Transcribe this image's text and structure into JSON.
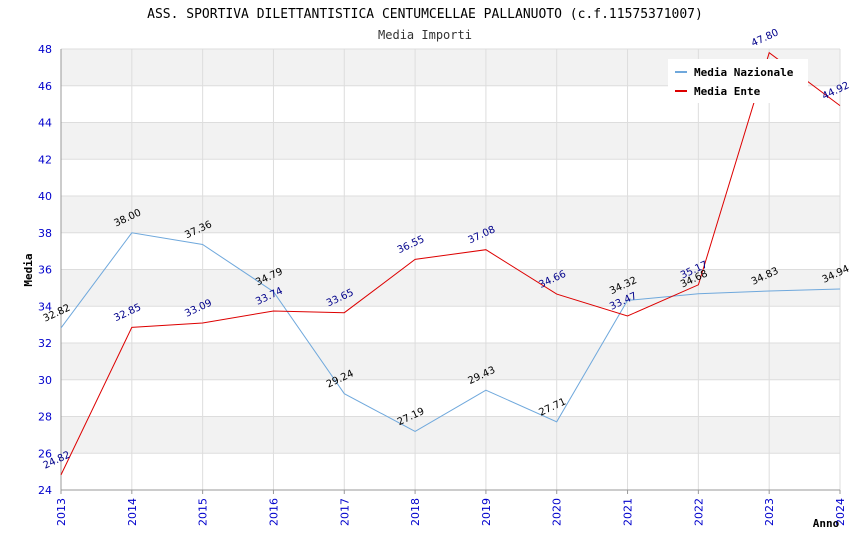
{
  "chart_data": {
    "type": "line",
    "title": "ASS. SPORTIVA DILETTANTISTICA CENTUMCELLAE PALLANUOTO (c.f.11575371007)",
    "subtitle": "Media Importi",
    "xlabel": "Anno",
    "ylabel": "Media",
    "ylim": [
      24,
      48
    ],
    "yticks": [
      "24",
      "26",
      "28",
      "30",
      "32",
      "34",
      "36",
      "38",
      "40",
      "42",
      "44",
      "46",
      "48"
    ],
    "x": [
      "2013",
      "2014",
      "2015",
      "2016",
      "2017",
      "2018",
      "2019",
      "2020",
      "2021",
      "2022",
      "2023",
      "2024"
    ],
    "grid": true,
    "legend_position": "top-right",
    "series": [
      {
        "name": "Media Nazionale",
        "color": "#6fa8dc",
        "values": [
          32.82,
          38.0,
          37.36,
          34.79,
          29.24,
          27.19,
          29.43,
          27.71,
          34.32,
          34.68,
          34.83,
          34.94
        ],
        "labels": [
          "32.82",
          "38.00",
          "37.36",
          "34.79",
          "29.24",
          "27.19",
          "29.43",
          "27.71",
          "34.32",
          "34.68",
          "34.83",
          "34.94"
        ]
      },
      {
        "name": "Media Ente",
        "color": "#dd0000",
        "values": [
          24.82,
          32.85,
          33.09,
          33.74,
          33.65,
          36.55,
          37.08,
          34.66,
          33.47,
          35.17,
          47.8,
          44.92
        ],
        "labels": [
          "24.82",
          "32.85",
          "33.09",
          "33.74",
          "33.65",
          "36.55",
          "37.08",
          "34.66",
          "33.47",
          "35.17",
          "47.80",
          "44.92"
        ]
      }
    ]
  }
}
